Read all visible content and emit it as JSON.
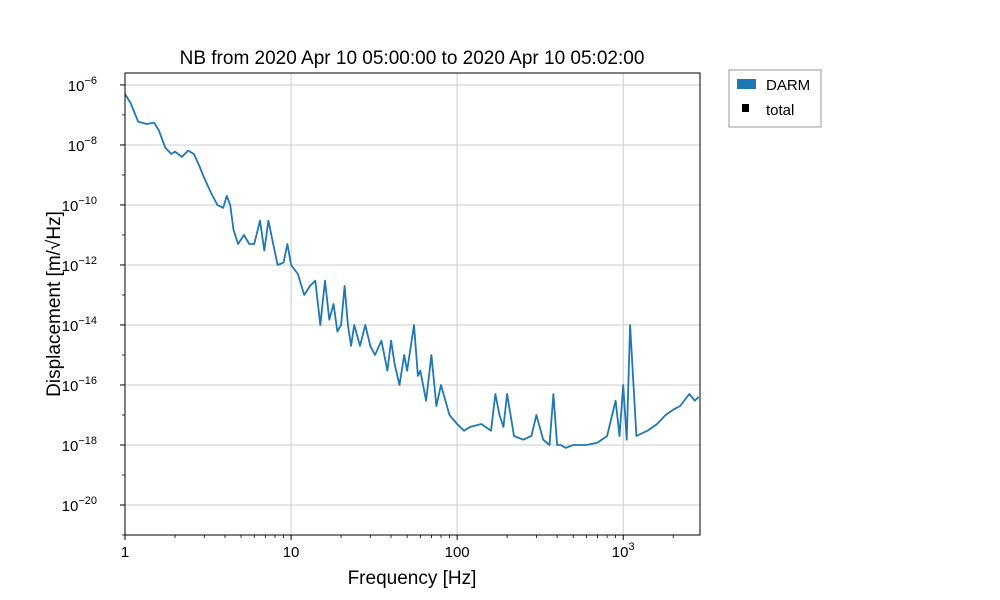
{
  "chart_data": {
    "type": "line",
    "title": "NB from 2020 Apr 10 05:00:00 to 2020 Apr 10 05:02:00",
    "xlabel": "Frequency [Hz]",
    "ylabel": "Displacement [m/√Hz]",
    "x_scale": "log",
    "y_scale": "log",
    "xlim": [
      1,
      2900
    ],
    "ylim": [
      1e-21,
      2.5e-06
    ],
    "grid": true,
    "legend_position": "outside-top-right",
    "x_ticks": [
      {
        "value": 1,
        "base": "1",
        "exp": ""
      },
      {
        "value": 10,
        "base": "10",
        "exp": ""
      },
      {
        "value": 100,
        "base": "100",
        "exp": ""
      },
      {
        "value": 1000,
        "base": "10",
        "exp": "3"
      }
    ],
    "y_ticks": [
      {
        "value": 1e-06,
        "base": "10",
        "exp": "−6"
      },
      {
        "value": 1e-08,
        "base": "10",
        "exp": "−8"
      },
      {
        "value": 1e-10,
        "base": "10",
        "exp": "−10"
      },
      {
        "value": 1e-12,
        "base": "10",
        "exp": "−12"
      },
      {
        "value": 1e-14,
        "base": "10",
        "exp": "−14"
      },
      {
        "value": 1e-16,
        "base": "10",
        "exp": "−16"
      },
      {
        "value": 1e-18,
        "base": "10",
        "exp": "−18"
      },
      {
        "value": 1e-20,
        "base": "10",
        "exp": "−20"
      }
    ],
    "series": [
      {
        "name": "DARM",
        "color": "#1f77b4",
        "x": [
          1,
          1.08,
          1.2,
          1.35,
          1.5,
          1.6,
          1.75,
          1.9,
          2.0,
          2.2,
          2.4,
          2.6,
          2.8,
          3.0,
          3.3,
          3.6,
          3.9,
          4.1,
          4.3,
          4.5,
          4.8,
          5.2,
          5.6,
          6.0,
          6.5,
          6.9,
          7.3,
          7.8,
          8.3,
          9.0,
          9.5,
          10.0,
          11.0,
          12.0,
          13.0,
          14.0,
          15.0,
          16.0,
          17.0,
          18.0,
          19.0,
          20.0,
          21.0,
          22.0,
          23.0,
          24.0,
          26.0,
          28.0,
          30.0,
          32.0,
          35.0,
          38.0,
          40.0,
          42.0,
          45.0,
          48.0,
          50.0,
          55.0,
          58.0,
          60.0,
          65.0,
          70.0,
          75.0,
          80.0,
          90.0,
          100.0,
          110.0,
          120.0,
          140.0,
          160.0,
          170.0,
          180.0,
          190.0,
          200.0,
          220.0,
          250.0,
          280.0,
          300.0,
          330.0,
          360.0,
          380.0,
          400.0,
          420.0,
          450.0,
          500.0,
          550.0,
          600.0,
          700.0,
          800.0,
          900.0,
          950.0,
          1000.0,
          1050.0,
          1100.0,
          1200.0,
          1400.0,
          1600.0,
          1800.0,
          2000.0,
          2200.0,
          2500.0,
          2700.0,
          2850.0
        ],
        "y": [
          5e-07,
          2.5e-07,
          6e-08,
          5e-08,
          5.5e-08,
          3e-08,
          8e-09,
          5e-09,
          6e-09,
          4e-09,
          6.5e-09,
          5e-09,
          2e-09,
          8e-10,
          2.5e-10,
          1e-10,
          8e-11,
          2e-10,
          1e-10,
          1.5e-11,
          5e-12,
          1e-11,
          5e-12,
          5e-12,
          3e-11,
          3e-12,
          3e-11,
          5e-12,
          1e-12,
          1.2e-12,
          5e-12,
          1e-12,
          5e-13,
          1e-13,
          2e-13,
          3e-13,
          1e-14,
          3e-13,
          1.5e-14,
          5e-14,
          6e-15,
          1e-14,
          2e-13,
          1e-14,
          2e-15,
          1e-14,
          2e-15,
          1e-14,
          2e-15,
          1e-15,
          3e-15,
          3e-16,
          3e-15,
          5e-16,
          1e-16,
          1e-15,
          3e-16,
          1e-14,
          2e-16,
          3e-16,
          3e-17,
          1e-15,
          2e-17,
          1e-16,
          1e-17,
          5e-18,
          3e-18,
          4e-18,
          5e-18,
          3e-18,
          5e-17,
          1e-17,
          4e-18,
          5e-17,
          2e-18,
          1.5e-18,
          2e-18,
          1e-17,
          1.5e-18,
          1e-18,
          5e-17,
          1e-18,
          1e-18,
          8e-19,
          1e-18,
          1e-18,
          1e-18,
          1.2e-18,
          2e-18,
          3e-17,
          2e-18,
          1e-16,
          1.5e-18,
          1e-14,
          2e-18,
          3e-18,
          5e-18,
          1e-17,
          1.5e-17,
          2e-17,
          5e-17,
          3e-17,
          4e-17
        ]
      },
      {
        "name": "total",
        "color": "#000000",
        "x": [],
        "y": []
      }
    ]
  }
}
